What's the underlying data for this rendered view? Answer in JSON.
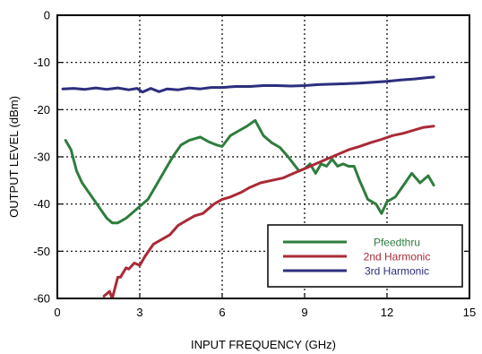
{
  "chart_data": {
    "type": "line",
    "title": "",
    "xlabel": "INPUT FREQUENCY (GHz)",
    "ylabel": "OUTPUT LEVEL (dBm)",
    "xlim": [
      0,
      15
    ],
    "ylim": [
      -60,
      0
    ],
    "x_ticks": [
      "0",
      "3",
      "6",
      "9",
      "12",
      "15"
    ],
    "y_ticks": [
      "0",
      "-10",
      "-20",
      "-30",
      "-40",
      "-50",
      "-60"
    ],
    "grid": true,
    "legend_position": "bottom-right",
    "series": [
      {
        "name": "Pfeedthru",
        "color": "#2e7d3e",
        "x": [
          0.3,
          0.5,
          0.7,
          0.9,
          1.2,
          1.5,
          1.8,
          2.0,
          2.2,
          2.5,
          2.8,
          3.0,
          3.3,
          3.6,
          3.9,
          4.2,
          4.5,
          4.8,
          5.2,
          5.5,
          5.8,
          6.0,
          6.3,
          6.6,
          6.9,
          7.2,
          7.5,
          7.8,
          8.1,
          8.4,
          8.6,
          8.8,
          9.0,
          9.2,
          9.4,
          9.6,
          9.8,
          10.0,
          10.2,
          10.4,
          10.6,
          10.8,
          11.0,
          11.3,
          11.6,
          11.8,
          12.0,
          12.3,
          12.6,
          12.9,
          13.2,
          13.5,
          13.7
        ],
        "values": [
          -26.5,
          -28.5,
          -33.0,
          -35.5,
          -38.0,
          -40.5,
          -43.0,
          -44.0,
          -44.0,
          -43.0,
          -41.5,
          -40.5,
          -39.0,
          -36.0,
          -33.0,
          -30.0,
          -27.5,
          -26.5,
          -25.8,
          -26.8,
          -27.5,
          -27.8,
          -25.5,
          -24.5,
          -23.5,
          -22.3,
          -25.5,
          -27.0,
          -28.0,
          -30.0,
          -31.5,
          -33.0,
          -32.5,
          -31.5,
          -33.5,
          -31.5,
          -32.0,
          -30.5,
          -32.0,
          -31.5,
          -32.0,
          -32.0,
          -35.0,
          -39.0,
          -40.0,
          -42.0,
          -39.5,
          -38.5,
          -36.0,
          -33.5,
          -35.5,
          -34.0,
          -36.0
        ]
      },
      {
        "name": "2nd Harmonic",
        "color": "#aa2a36",
        "x": [
          1.7,
          1.9,
          2.0,
          2.2,
          2.3,
          2.5,
          2.6,
          2.8,
          3.0,
          3.2,
          3.5,
          3.8,
          4.1,
          4.4,
          4.7,
          5.0,
          5.3,
          5.7,
          6.0,
          6.3,
          6.7,
          7.0,
          7.4,
          7.8,
          8.2,
          8.6,
          9.0,
          9.4,
          9.8,
          10.2,
          10.6,
          11.0,
          11.4,
          11.8,
          12.2,
          12.6,
          13.0,
          13.3,
          13.7
        ],
        "values": [
          -59.5,
          -58.5,
          -60.0,
          -55.5,
          -55.5,
          -53.5,
          -53.8,
          -52.5,
          -53.0,
          -51.0,
          -48.5,
          -47.5,
          -46.5,
          -44.5,
          -43.5,
          -42.5,
          -42.0,
          -40.0,
          -39.0,
          -38.5,
          -37.5,
          -36.5,
          -35.5,
          -35.0,
          -34.5,
          -33.5,
          -32.5,
          -31.5,
          -30.5,
          -29.5,
          -28.5,
          -27.8,
          -27.0,
          -26.3,
          -25.5,
          -25.0,
          -24.3,
          -23.8,
          -23.5
        ]
      },
      {
        "name": "3rd Harmonic",
        "color": "#2c2f7e",
        "x": [
          0.2,
          0.6,
          1.0,
          1.4,
          1.8,
          2.2,
          2.6,
          2.9,
          3.1,
          3.4,
          3.7,
          4.0,
          4.4,
          4.8,
          5.2,
          5.6,
          6.0,
          6.5,
          7.0,
          7.5,
          8.0,
          8.5,
          9.0,
          9.5,
          10.0,
          10.5,
          11.0,
          11.5,
          12.0,
          12.5,
          13.0,
          13.5,
          13.7
        ],
        "values": [
          -15.6,
          -15.5,
          -15.7,
          -15.4,
          -15.7,
          -15.4,
          -15.8,
          -15.5,
          -16.3,
          -15.5,
          -16.2,
          -15.6,
          -15.8,
          -15.4,
          -15.6,
          -15.3,
          -15.3,
          -15.1,
          -15.1,
          -14.9,
          -14.9,
          -15.0,
          -14.9,
          -14.7,
          -14.6,
          -14.5,
          -14.4,
          -14.2,
          -14.0,
          -13.7,
          -13.5,
          -13.2,
          -13.1
        ]
      }
    ]
  }
}
